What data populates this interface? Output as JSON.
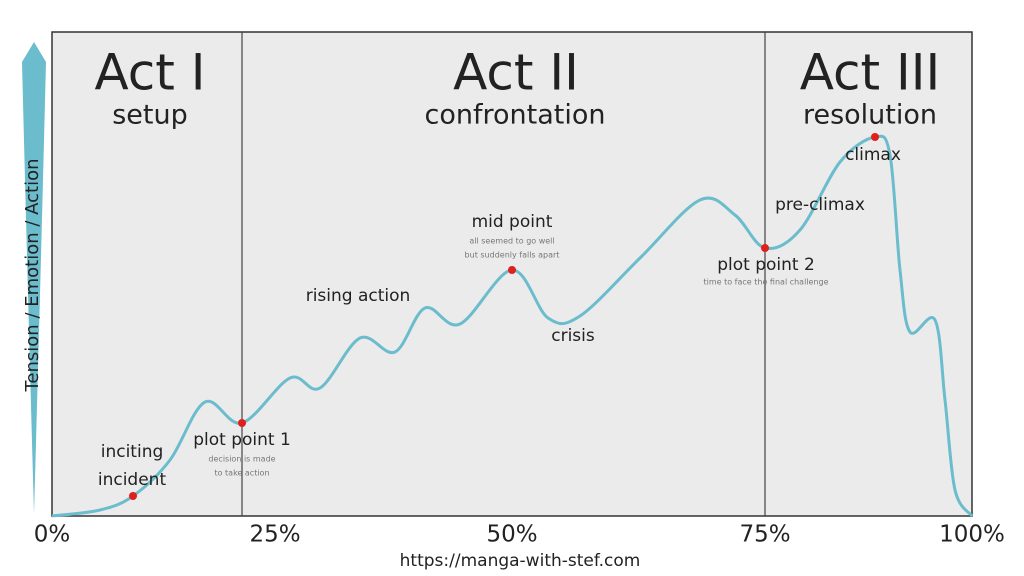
{
  "acts": [
    {
      "title": "Act I",
      "subtitle": "setup"
    },
    {
      "title": "Act II",
      "subtitle": "confrontation"
    },
    {
      "title": "Act III",
      "subtitle": "resolution"
    }
  ],
  "y_axis_label": "Tension / Emotion / Action",
  "x_ticks": [
    "0%",
    "25%",
    "50%",
    "75%",
    "100%"
  ],
  "annotations": {
    "inciting_incident": [
      "inciting",
      "incident"
    ],
    "plot_point_1": {
      "label": "plot point 1",
      "note": [
        "decision is made",
        "to take action"
      ]
    },
    "rising_action": "rising action",
    "mid_point": {
      "label": "mid point",
      "note": [
        "all seemed to go well",
        "but suddenly falls apart"
      ]
    },
    "crisis": "crisis",
    "plot_point_2": {
      "label": "plot point 2",
      "note": [
        "time to face the final challenge"
      ]
    },
    "pre_climax": "pre-climax",
    "climax": "climax"
  },
  "url": "https://manga-with-stef.com"
}
